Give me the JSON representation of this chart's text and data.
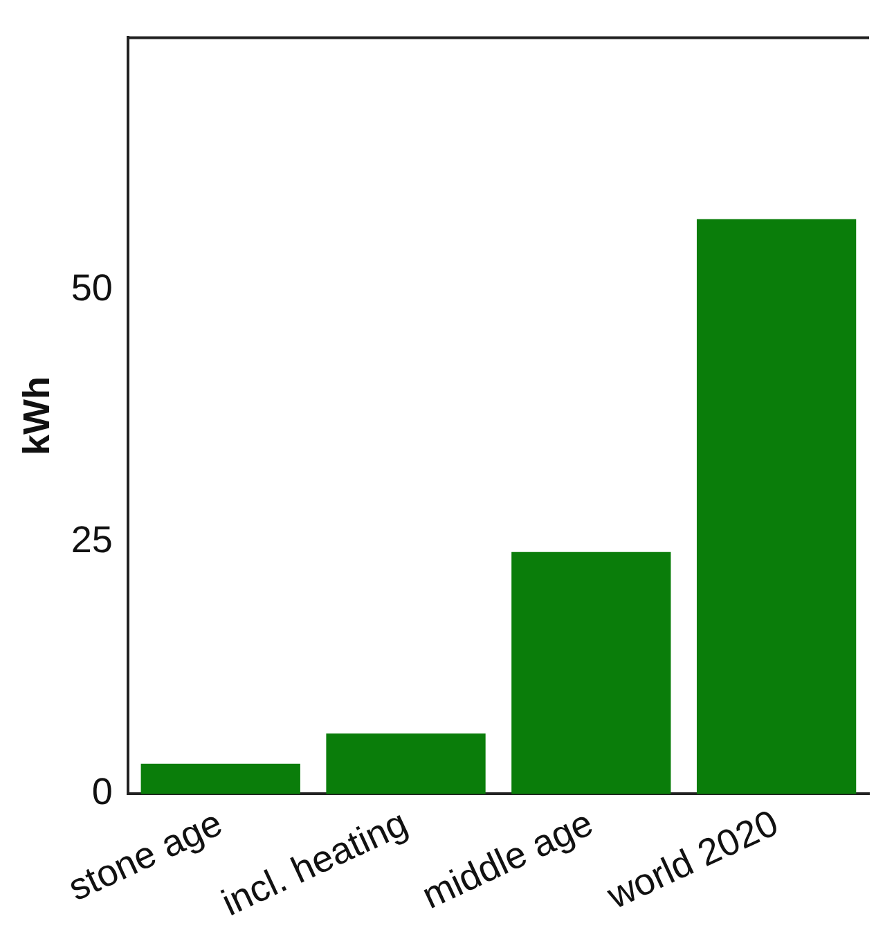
{
  "chart_data": {
    "type": "bar",
    "ylabel": "kWh",
    "categories": [
      "stone age",
      "incl. heating",
      "middle age",
      "world 2020"
    ],
    "values": [
      3,
      6,
      24,
      57
    ],
    "color": "#0a7d0a",
    "ylim": [
      0,
      75
    ],
    "yticks": [
      0,
      25,
      50
    ],
    "grid": false,
    "legend": false
  }
}
